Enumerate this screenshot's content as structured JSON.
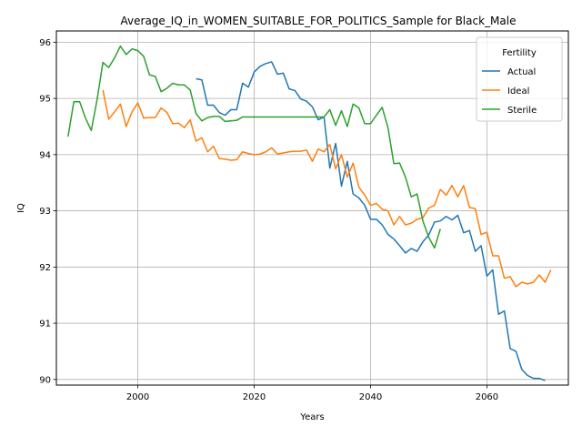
{
  "chart_data": {
    "type": "line",
    "title": "Average_IQ_in_WOMEN_SUITABLE_FOR_POLITICS_Sample for Black_Male",
    "xlabel": "Years",
    "ylabel": "IQ",
    "xlim": [
      1986,
      2074
    ],
    "ylim": [
      89.9,
      96.2
    ],
    "x_ticks": [
      2000,
      2020,
      2040,
      2060
    ],
    "y_ticks": [
      90,
      91,
      92,
      93,
      94,
      95,
      96
    ],
    "grid": true,
    "legend": {
      "title": "Fertility",
      "position": "top-right"
    },
    "series": [
      {
        "name": "Actual",
        "color": "#1f77b4",
        "points": [
          [
            2010,
            95.35
          ],
          [
            2011,
            95.33
          ],
          [
            2012,
            94.88
          ],
          [
            2013,
            94.88
          ],
          [
            2014,
            94.75
          ],
          [
            2015,
            94.7
          ],
          [
            2016,
            94.8
          ],
          [
            2017,
            94.8
          ],
          [
            2018,
            95.27
          ],
          [
            2019,
            95.2
          ],
          [
            2020,
            95.47
          ],
          [
            2021,
            95.57
          ],
          [
            2022,
            95.62
          ],
          [
            2023,
            95.65
          ],
          [
            2024,
            95.43
          ],
          [
            2025,
            95.45
          ],
          [
            2026,
            95.17
          ],
          [
            2027,
            95.14
          ],
          [
            2028,
            94.99
          ],
          [
            2029,
            94.95
          ],
          [
            2030,
            94.85
          ],
          [
            2031,
            94.62
          ],
          [
            2032,
            94.67
          ],
          [
            2033,
            93.76
          ],
          [
            2034,
            94.2
          ],
          [
            2035,
            93.44
          ],
          [
            2036,
            93.88
          ],
          [
            2037,
            93.3
          ],
          [
            2038,
            93.23
          ],
          [
            2039,
            93.1
          ],
          [
            2040,
            92.85
          ],
          [
            2041,
            92.85
          ],
          [
            2042,
            92.75
          ],
          [
            2043,
            92.58
          ],
          [
            2044,
            92.5
          ],
          [
            2045,
            92.38
          ],
          [
            2046,
            92.25
          ],
          [
            2047,
            92.33
          ],
          [
            2048,
            92.28
          ],
          [
            2049,
            92.45
          ],
          [
            2050,
            92.57
          ],
          [
            2051,
            92.8
          ],
          [
            2052,
            92.82
          ],
          [
            2053,
            92.9
          ],
          [
            2054,
            92.84
          ],
          [
            2055,
            92.92
          ],
          [
            2056,
            92.61
          ],
          [
            2057,
            92.65
          ],
          [
            2058,
            92.28
          ],
          [
            2059,
            92.38
          ],
          [
            2060,
            91.84
          ],
          [
            2061,
            91.95
          ],
          [
            2062,
            91.16
          ],
          [
            2063,
            91.22
          ],
          [
            2064,
            90.55
          ],
          [
            2065,
            90.5
          ],
          [
            2066,
            90.18
          ],
          [
            2067,
            90.07
          ],
          [
            2068,
            90.02
          ],
          [
            2069,
            90.02
          ],
          [
            2070,
            89.98
          ]
        ]
      },
      {
        "name": "Ideal",
        "color": "#ff7f0e",
        "points": [
          [
            1994,
            95.15
          ],
          [
            1995,
            94.63
          ],
          [
            1996,
            94.76
          ],
          [
            1997,
            94.9
          ],
          [
            1998,
            94.5
          ],
          [
            1999,
            94.76
          ],
          [
            2000,
            94.92
          ],
          [
            2001,
            94.65
          ],
          [
            2002,
            94.66
          ],
          [
            2003,
            94.66
          ],
          [
            2004,
            94.83
          ],
          [
            2005,
            94.75
          ],
          [
            2006,
            94.55
          ],
          [
            2007,
            94.56
          ],
          [
            2008,
            94.48
          ],
          [
            2009,
            94.62
          ],
          [
            2010,
            94.24
          ],
          [
            2011,
            94.3
          ],
          [
            2012,
            94.05
          ],
          [
            2013,
            94.15
          ],
          [
            2014,
            93.93
          ],
          [
            2015,
            93.92
          ],
          [
            2016,
            93.9
          ],
          [
            2017,
            93.91
          ],
          [
            2018,
            94.05
          ],
          [
            2019,
            94.02
          ],
          [
            2020,
            94.0
          ],
          [
            2021,
            94.01
          ],
          [
            2022,
            94.05
          ],
          [
            2023,
            94.12
          ],
          [
            2024,
            94.01
          ],
          [
            2025,
            94.03
          ],
          [
            2026,
            94.05
          ],
          [
            2027,
            94.06
          ],
          [
            2028,
            94.06
          ],
          [
            2029,
            94.08
          ],
          [
            2030,
            93.88
          ],
          [
            2031,
            94.1
          ],
          [
            2032,
            94.05
          ],
          [
            2033,
            94.18
          ],
          [
            2034,
            93.75
          ],
          [
            2035,
            94.0
          ],
          [
            2036,
            93.6
          ],
          [
            2037,
            93.85
          ],
          [
            2038,
            93.42
          ],
          [
            2039,
            93.28
          ],
          [
            2040,
            93.1
          ],
          [
            2041,
            93.13
          ],
          [
            2042,
            93.03
          ],
          [
            2043,
            93.0
          ],
          [
            2044,
            92.75
          ],
          [
            2045,
            92.9
          ],
          [
            2046,
            92.75
          ],
          [
            2047,
            92.78
          ],
          [
            2048,
            92.85
          ],
          [
            2049,
            92.88
          ],
          [
            2050,
            93.05
          ],
          [
            2051,
            93.1
          ],
          [
            2052,
            93.38
          ],
          [
            2053,
            93.28
          ],
          [
            2054,
            93.45
          ],
          [
            2055,
            93.25
          ],
          [
            2056,
            93.45
          ],
          [
            2057,
            93.06
          ],
          [
            2058,
            93.04
          ],
          [
            2059,
            92.58
          ],
          [
            2060,
            92.62
          ],
          [
            2061,
            92.2
          ],
          [
            2062,
            92.2
          ],
          [
            2063,
            91.8
          ],
          [
            2064,
            91.83
          ],
          [
            2065,
            91.65
          ],
          [
            2066,
            91.73
          ],
          [
            2067,
            91.7
          ],
          [
            2068,
            91.73
          ],
          [
            2069,
            91.86
          ],
          [
            2070,
            91.73
          ],
          [
            2071,
            91.95
          ]
        ]
      },
      {
        "name": "Sterile",
        "color": "#2ca02c",
        "points": [
          [
            1988,
            94.32
          ],
          [
            1989,
            94.94
          ],
          [
            1990,
            94.94
          ],
          [
            1991,
            94.65
          ],
          [
            1992,
            94.43
          ],
          [
            1993,
            94.98
          ],
          [
            1994,
            95.64
          ],
          [
            1995,
            95.55
          ],
          [
            1996,
            95.72
          ],
          [
            1997,
            95.93
          ],
          [
            1998,
            95.78
          ],
          [
            1999,
            95.88
          ],
          [
            2000,
            95.85
          ],
          [
            2001,
            95.75
          ],
          [
            2002,
            95.42
          ],
          [
            2003,
            95.39
          ],
          [
            2004,
            95.12
          ],
          [
            2005,
            95.18
          ],
          [
            2006,
            95.27
          ],
          [
            2007,
            95.24
          ],
          [
            2008,
            95.24
          ],
          [
            2009,
            95.15
          ],
          [
            2010,
            94.73
          ],
          [
            2011,
            94.6
          ],
          [
            2012,
            94.66
          ],
          [
            2013,
            94.68
          ],
          [
            2014,
            94.68
          ],
          [
            2015,
            94.59
          ],
          [
            2016,
            94.6
          ],
          [
            2017,
            94.61
          ],
          [
            2018,
            94.67
          ],
          [
            2019,
            94.67
          ],
          [
            2020,
            94.67
          ],
          [
            2021,
            94.67
          ],
          [
            2022,
            94.67
          ],
          [
            2023,
            94.67
          ],
          [
            2024,
            94.67
          ],
          [
            2025,
            94.67
          ],
          [
            2026,
            94.67
          ],
          [
            2027,
            94.67
          ],
          [
            2028,
            94.67
          ],
          [
            2029,
            94.67
          ],
          [
            2030,
            94.67
          ],
          [
            2031,
            94.67
          ],
          [
            2032,
            94.67
          ],
          [
            2033,
            94.8
          ],
          [
            2034,
            94.52
          ],
          [
            2035,
            94.78
          ],
          [
            2036,
            94.5
          ],
          [
            2037,
            94.9
          ],
          [
            2038,
            94.83
          ],
          [
            2039,
            94.55
          ],
          [
            2040,
            94.55
          ],
          [
            2041,
            94.7
          ],
          [
            2042,
            94.84
          ],
          [
            2043,
            94.48
          ],
          [
            2044,
            93.84
          ],
          [
            2045,
            93.85
          ],
          [
            2046,
            93.6
          ],
          [
            2047,
            93.25
          ],
          [
            2048,
            93.3
          ],
          [
            2049,
            92.82
          ],
          [
            2050,
            92.53
          ],
          [
            2051,
            92.34
          ],
          [
            2052,
            92.68
          ]
        ]
      }
    ]
  }
}
